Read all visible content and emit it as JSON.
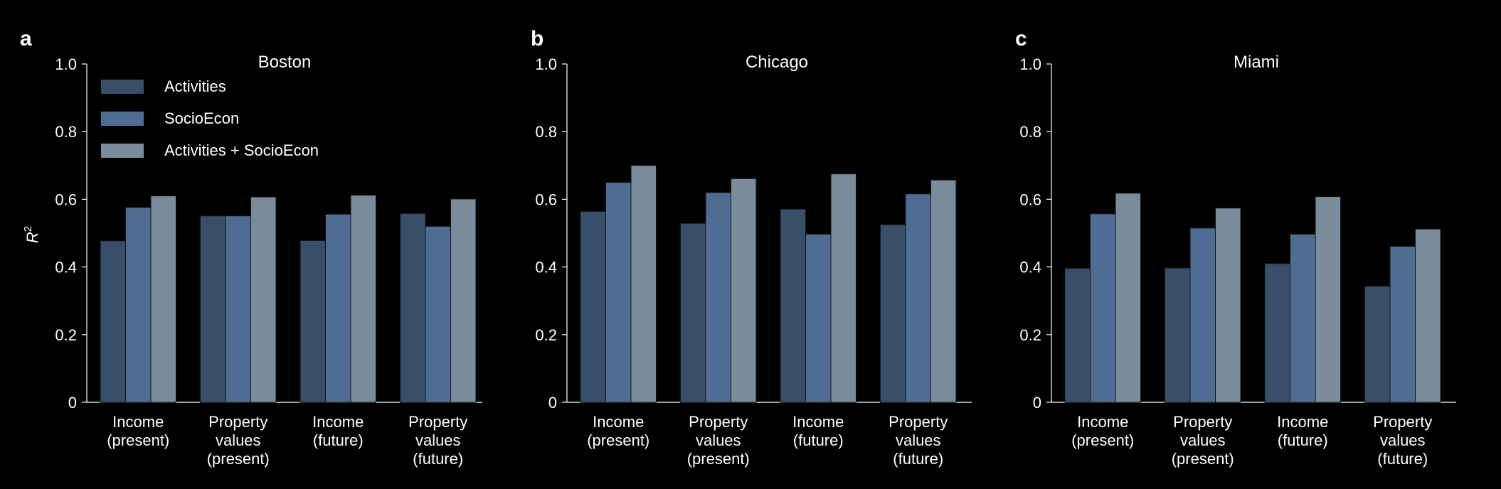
{
  "series_colors": [
    "#394f69",
    "#4f6d92",
    "#7a8b9c"
  ],
  "axis_color": "#ffffff",
  "background": "#000000",
  "legend": {
    "entries": [
      "Activities",
      "SocioEcon",
      "Activities + SocioEcon"
    ]
  },
  "chart_data": [
    {
      "panel_label": "a",
      "type": "bar",
      "title": "Boston",
      "ylabel": "R",
      "ylabel_superscript": "2",
      "ylim": [
        0,
        1.0
      ],
      "yticks": [
        0,
        0.2,
        0.4,
        0.6,
        0.8,
        1.0
      ],
      "ytick_labels": [
        "0",
        "0.2",
        "0.4",
        "0.6",
        "0.8",
        "1.0"
      ],
      "categories": [
        [
          "Income",
          "(present)"
        ],
        [
          "Property",
          "values",
          "(present)"
        ],
        [
          "Income",
          "(future)"
        ],
        [
          "Property",
          "values",
          "(future)"
        ]
      ],
      "series": [
        {
          "name": "Activities",
          "values": [
            0.477,
            0.551,
            0.478,
            0.558
          ]
        },
        {
          "name": "SocioEcon",
          "values": [
            0.576,
            0.551,
            0.556,
            0.52
          ]
        },
        {
          "name": "Activities + SocioEcon",
          "values": [
            0.61,
            0.607,
            0.612,
            0.601
          ]
        }
      ],
      "legend_position": "top-left",
      "grid": false
    },
    {
      "panel_label": "b",
      "type": "bar",
      "title": "Chicago",
      "ylim": [
        0,
        1.0
      ],
      "yticks": [
        0,
        0.2,
        0.4,
        0.6,
        0.8,
        1.0
      ],
      "ytick_labels": [
        "0",
        "0.2",
        "0.4",
        "0.6",
        "0.8",
        "1.0"
      ],
      "categories": [
        [
          "Income",
          "(present)"
        ],
        [
          "Property",
          "values",
          "(present)"
        ],
        [
          "Income",
          "(future)"
        ],
        [
          "Property",
          "values",
          "(future)"
        ]
      ],
      "series": [
        {
          "name": "Activities",
          "values": [
            0.564,
            0.529,
            0.571,
            0.525
          ]
        },
        {
          "name": "SocioEcon",
          "values": [
            0.65,
            0.62,
            0.497,
            0.616
          ]
        },
        {
          "name": "Activities + SocioEcon",
          "values": [
            0.7,
            0.661,
            0.675,
            0.657
          ]
        }
      ],
      "grid": false
    },
    {
      "panel_label": "c",
      "type": "bar",
      "title": "Miami",
      "ylim": [
        0,
        1.0
      ],
      "yticks": [
        0,
        0.2,
        0.4,
        0.6,
        0.8,
        1.0
      ],
      "ytick_labels": [
        "0",
        "0.2",
        "0.4",
        "0.6",
        "0.8",
        "1.0"
      ],
      "categories": [
        [
          "Income",
          "(present)"
        ],
        [
          "Property",
          "values",
          "(present)"
        ],
        [
          "Income",
          "(future)"
        ],
        [
          "Property",
          "values",
          "(future)"
        ]
      ],
      "series": [
        {
          "name": "Activities",
          "values": [
            0.396,
            0.397,
            0.41,
            0.343
          ]
        },
        {
          "name": "SocioEcon",
          "values": [
            0.557,
            0.515,
            0.497,
            0.461
          ]
        },
        {
          "name": "Activities + SocioEcon",
          "values": [
            0.618,
            0.574,
            0.608,
            0.512
          ]
        }
      ],
      "grid": false
    }
  ]
}
